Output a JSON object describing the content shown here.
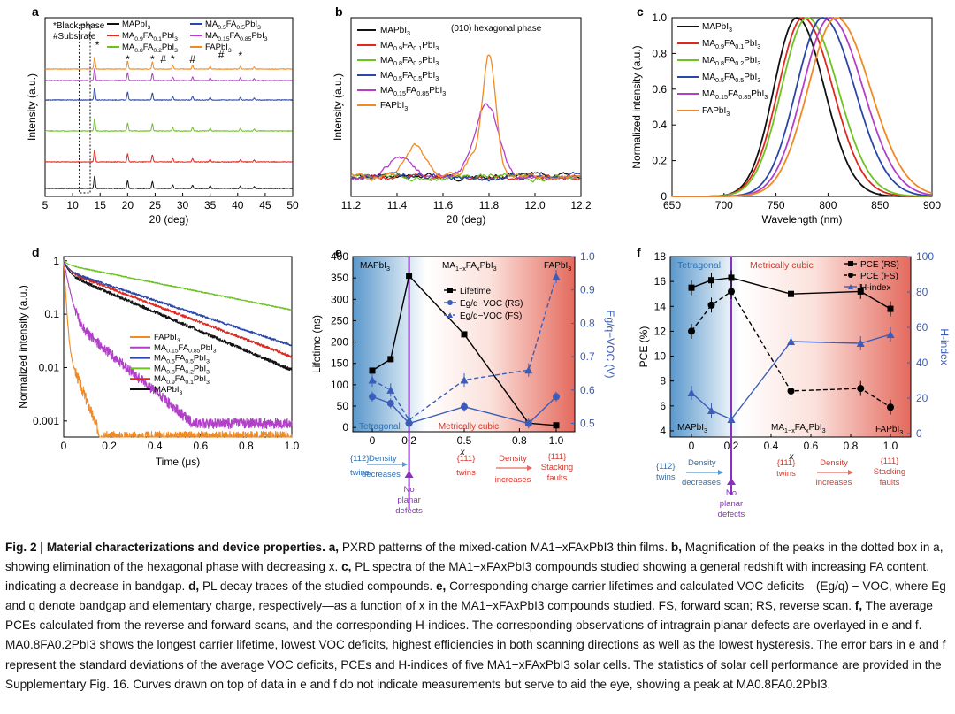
{
  "figure": {
    "panel_labels": [
      "a",
      "b",
      "c",
      "d",
      "e",
      "f"
    ],
    "compounds": [
      {
        "name": "MAPbI3",
        "color": "#111111"
      },
      {
        "name": "MA0.9FA0.1PbI3",
        "color": "#e0281f"
      },
      {
        "name": "MA0.8FA0.2PbI3",
        "color": "#6cc321"
      },
      {
        "name": "MA0.5FA0.5PbI3",
        "color": "#2947a8"
      },
      {
        "name": "MA0.15FA0.85PbI3",
        "color": "#b23fc7"
      },
      {
        "name": "FAPbI3",
        "color": "#f08a24"
      }
    ],
    "violet_line_color": "#8a2fbf",
    "pce_blue": "#3b5cb8"
  },
  "panel_a": {
    "label": "a",
    "legend_note_1": "*Black phase",
    "legend_note_2": "#Substrate",
    "xlabel": "2θ (deg)",
    "ylabel": "Intensity (a.u.)",
    "xticks": [
      "5",
      "10",
      "15",
      "20",
      "25",
      "30",
      "35",
      "40",
      "45",
      "50"
    ],
    "markers": [
      "*",
      "*",
      "*",
      "#",
      "*",
      "#",
      "#",
      "*"
    ],
    "chart_data": {
      "type": "line",
      "x_range": [
        5,
        50
      ],
      "series_order": [
        "MAPbI3",
        "MA0.9FA0.1PbI3",
        "MA0.8FA0.2PbI3",
        "MA0.5FA0.5PbI3",
        "MA0.15FA0.85PbI3",
        "FAPbI3"
      ],
      "peaks_deg": [
        14.0,
        20.0,
        24.5,
        28.2,
        31.8,
        35.0,
        40.5,
        43.0
      ]
    }
  },
  "panel_b": {
    "label": "b",
    "annotation": "(010) hexagonal phase",
    "xlabel": "2θ (deg)",
    "ylabel": "Intensity (a.u.)",
    "xticks": [
      "11.2",
      "11.4",
      "11.6",
      "11.8",
      "12.0",
      "12.2"
    ],
    "chart_data": {
      "type": "line",
      "x_range": [
        11.2,
        12.2
      ],
      "feature_peak_deg": 11.8
    }
  },
  "panel_c": {
    "label": "c",
    "xlabel": "Wavelength (nm)",
    "ylabel": "Normalized intensity (a.u.)",
    "xticks": [
      "650",
      "700",
      "750",
      "800",
      "850",
      "900"
    ],
    "yticks": [
      "0",
      "0.2",
      "0.4",
      "0.6",
      "0.8",
      "1.0"
    ],
    "chart_data": {
      "type": "line",
      "x_range": [
        650,
        900
      ],
      "y_range": [
        0,
        1.0
      ],
      "series": [
        {
          "name": "MAPbI3",
          "peak_nm": 770,
          "width": 26
        },
        {
          "name": "MA0.9FA0.1PbI3",
          "peak_nm": 776,
          "width": 28
        },
        {
          "name": "MA0.8FA0.2PbI3",
          "peak_nm": 780,
          "width": 29
        },
        {
          "name": "MA0.5FA0.5PbI3",
          "peak_nm": 795,
          "width": 30
        },
        {
          "name": "MA0.15FA0.85PbI3",
          "peak_nm": 802,
          "width": 31
        },
        {
          "name": "FAPbI3",
          "peak_nm": 808,
          "width": 32
        }
      ]
    }
  },
  "panel_d": {
    "label": "d",
    "xlabel": "Time (μs)",
    "ylabel": "Normalized intensity (a.u.)",
    "xticks": [
      "0",
      "0.2",
      "0.4",
      "0.6",
      "0.8",
      "1.0"
    ],
    "yticks": [
      "0.001",
      "0.01",
      "0.1",
      "1"
    ],
    "legend_order": [
      "FAPbI3",
      "MA0.15FA0.85PbI3",
      "MA0.5FA0.5PbI3",
      "MA0.8FA0.2PbI3",
      "MA0.9FA0.1PbI3",
      "MAPbI3"
    ],
    "chart_data": {
      "type": "line",
      "x_range": [
        0,
        1.0
      ],
      "y_log_range": [
        0.0005,
        1.2
      ],
      "series": [
        {
          "name": "MAPbI3",
          "end_value": 0.009
        },
        {
          "name": "MA0.9FA0.1PbI3",
          "end_value": 0.016
        },
        {
          "name": "MA0.8FA0.2PbI3",
          "end_value": 0.12
        },
        {
          "name": "MA0.5FA0.5PbI3",
          "end_value": 0.026
        },
        {
          "name": "MA0.15FA0.85PbI3",
          "end_value": 0.0009
        },
        {
          "name": "FAPbI3",
          "end_value": 0.0006
        }
      ]
    }
  },
  "panel_e": {
    "label": "e",
    "ylabel_left": "Lifetime (ns)",
    "ylabel_right": "Eg/q−VOC (V)",
    "xlabel": "x",
    "xticks": [
      "0",
      "0.2",
      "0.5",
      "0.8",
      "1.0"
    ],
    "yticks_left": [
      "0",
      "50",
      "100",
      "150",
      "200",
      "250",
      "300",
      "350",
      "400"
    ],
    "yticks_right": [
      "0.5",
      "0.6",
      "0.7",
      "0.8",
      "0.9",
      "1.0"
    ],
    "region_mapbi3": "MAPbI3",
    "region_mixed": "MA1−xFAxPbI3",
    "region_fapbi3": "FAPbI3",
    "region_tetragonal": "Tetragonal",
    "region_cubic": "Metrically cubic",
    "legend": [
      "Lifetime",
      "Eg/q−VOC (RS)",
      "Eg/q−VOC (FS)"
    ],
    "ann_twins": "{112}t twins",
    "ann_density_dec": "Density decreases",
    "ann_no_planar": "No planar defects",
    "ann_111_twins": "{111}c twins",
    "ann_density_inc": "Density increases",
    "ann_stacking": "{111}c Stacking faults",
    "chart_data": {
      "type": "line",
      "x": [
        0,
        0.1,
        0.2,
        0.5,
        0.85,
        1.0
      ],
      "lifetime_ns": [
        133,
        160,
        355,
        218,
        10,
        5
      ],
      "voc_deficit_rs": [
        0.58,
        0.56,
        0.5,
        0.55,
        0.5,
        0.58
      ],
      "voc_deficit_fs": [
        0.63,
        0.6,
        0.51,
        0.63,
        0.66,
        0.94
      ],
      "ylim_left": [
        -10,
        400
      ],
      "ylim_right": [
        0.475,
        1.0
      ]
    }
  },
  "panel_f": {
    "label": "f",
    "ylabel_left": "PCE (%)",
    "ylabel_right": "H-index",
    "xlabel": "x",
    "xticks": [
      "0",
      "0.2",
      "0.4",
      "0.6",
      "0.8",
      "1.0"
    ],
    "yticks_left": [
      "4",
      "6",
      "8",
      "10",
      "12",
      "14",
      "16",
      "18"
    ],
    "yticks_right": [
      "0",
      "20",
      "40",
      "60",
      "80",
      "100"
    ],
    "region_tetragonal": "Tetragonal",
    "region_cubic": "Metrically cubic",
    "region_mapbi3": "MAPbI3",
    "region_mixed": "MA1−xFAxPbI3",
    "region_fapbi3": "FAPbI3",
    "legend": [
      "PCE (RS)",
      "PCE (FS)",
      "H-index"
    ],
    "chart_data": {
      "type": "line",
      "x": [
        0,
        0.1,
        0.2,
        0.5,
        0.85,
        1.0
      ],
      "pce_rs": [
        15.5,
        16.1,
        16.3,
        15.0,
        15.2,
        13.8
      ],
      "pce_fs": [
        12.0,
        14.1,
        15.2,
        7.2,
        7.4,
        5.9
      ],
      "h_index": [
        23,
        13,
        8,
        52,
        51,
        56
      ],
      "ylim_left": [
        3.5,
        18
      ],
      "ylim_right": [
        -2,
        100
      ]
    }
  },
  "caption": {
    "title": "Fig. 2 | Material characterizations and device properties.",
    "a": "PXRD patterns of the mixed-cation MA1−xFAxPbI3 thin films.",
    "b": "Magnification of the peaks in the dotted box in a, showing elimination of the hexagonal phase with decreasing x.",
    "c": "PL spectra of the MA1−xFAxPbI3 compounds studied showing a general redshift with increasing FA content, indicating a decrease in bandgap.",
    "d": "PL decay traces of the studied compounds.",
    "e": "Corresponding charge carrier lifetimes and calculated VOC deficits—(Eg/q) − VOC, where Eg and q denote bandgap and elementary charge, respectively—as a function of x in the MA1−xFAxPbI3 compounds studied. FS, forward scan; RS, reverse scan.",
    "f": "The average PCEs calculated from the reverse and forward scans, and the corresponding H-indices. The corresponding observations of intragrain planar defects are overlayed in e and f. MA0.8FA0.2PbI3 shows the longest carrier lifetime, lowest VOC deficits, highest efficiencies in both scanning directions as well as the lowest hysteresis. The error bars in e and f represent the standard deviations of the average VOC deficits, PCEs and H-indices of five MA1−xFAxPbI3 solar cells. The statistics of solar cell performance are provided in the Supplementary Fig. 16. Curves drawn on top of data in e and f do not indicate measurements but serve to aid the eye, showing a peak at MA0.8FA0.2PbI3."
  }
}
